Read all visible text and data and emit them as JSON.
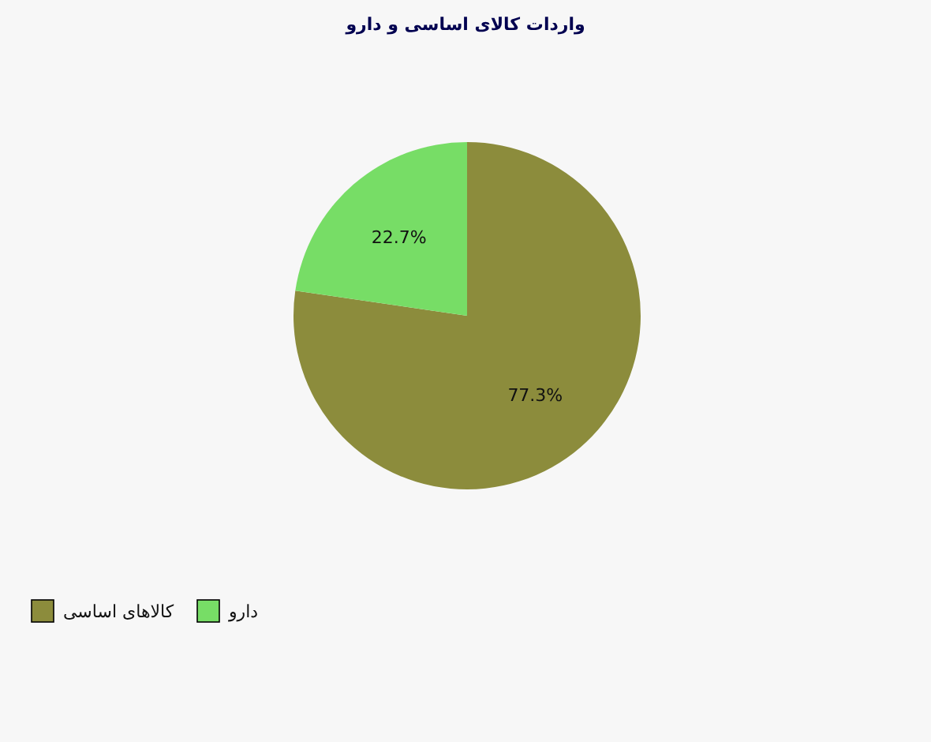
{
  "chart_data": {
    "type": "pie",
    "title": "واردات کالای اساسی و دارو",
    "categories": [
      "کالاهای اساسی",
      "دارو"
    ],
    "values": [
      77.3,
      22.7
    ],
    "value_labels": [
      "77.3%",
      "22.7%"
    ],
    "colors": [
      "#8c8c3c",
      "#77dd66"
    ],
    "legend": "bottom left"
  }
}
